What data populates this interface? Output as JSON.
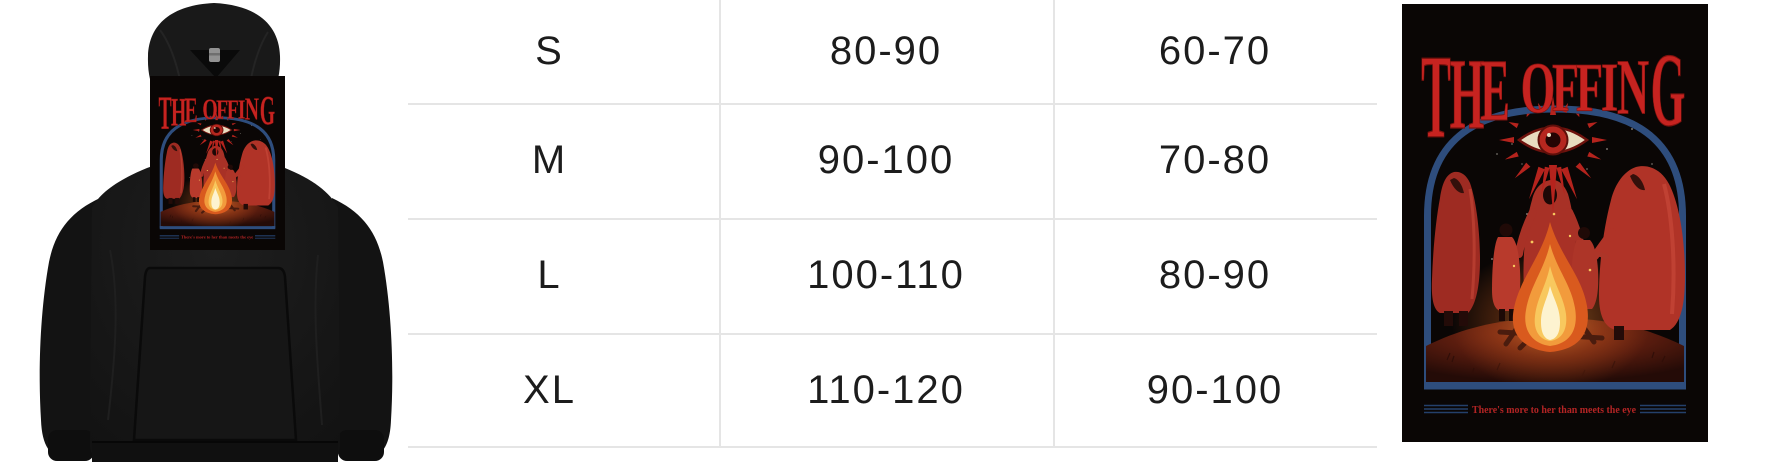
{
  "size_table": {
    "rows": [
      {
        "size": "S",
        "values": [
          "80-90",
          "60-70"
        ]
      },
      {
        "size": "M",
        "values": [
          "90-100",
          "70-80"
        ]
      },
      {
        "size": "L",
        "values": [
          "100-110",
          "80-90"
        ]
      },
      {
        "size": "XL",
        "values": [
          "110-120",
          "90-100"
        ]
      }
    ]
  },
  "artwork": {
    "title": "THE OFFING",
    "tagline": "There's more to her than meets the eye",
    "colors": {
      "background": "#0a0605",
      "title_red": "#c62320",
      "arch_blue": "#2e4d7d",
      "tagline_red": "#b32424",
      "robe_red": "#a52e25",
      "flame_orange": "#f29b3c",
      "flame_core": "#fdf3d0",
      "eye_cream": "#e8dcc0"
    }
  },
  "product_photo": {
    "item": "black pullover hoodie with The Offing chest print",
    "hoodie_black": "#161616"
  }
}
